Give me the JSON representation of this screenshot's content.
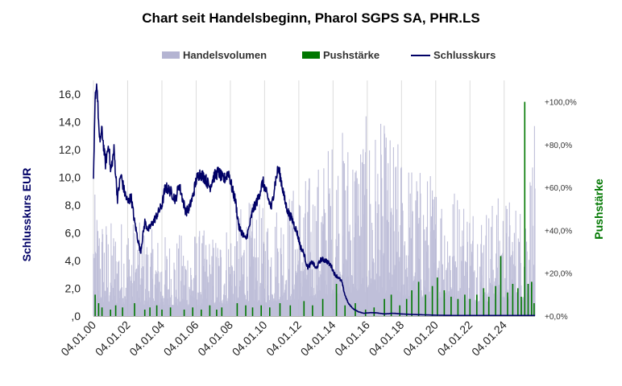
{
  "chart_data": {
    "type": "combo",
    "title": "Chart seit Handelsbeginn, Pharol SGPS SA, PHR.LS",
    "legend_position": "top",
    "legend": [
      {
        "name": "Handelsvolumen",
        "color": "#b4b4d2",
        "kind": "area"
      },
      {
        "name": "Pushstärke",
        "color": "#007700",
        "kind": "bar"
      },
      {
        "name": "Schlusskurs",
        "color": "#000066",
        "kind": "line"
      }
    ],
    "ylabel_left": "Schlusskurs EUR",
    "ylabel_right": "Pushstärke",
    "ylim_left": [
      0,
      17
    ],
    "ylim_right": [
      0,
      110
    ],
    "yticks_left": [
      {
        "value": 0,
        "label": ",0"
      },
      {
        "value": 2,
        "label": "2,0"
      },
      {
        "value": 4,
        "label": "4,0"
      },
      {
        "value": 6,
        "label": "6,0"
      },
      {
        "value": 8,
        "label": "8,0"
      },
      {
        "value": 10,
        "label": "10,0"
      },
      {
        "value": 12,
        "label": "12,0"
      },
      {
        "value": 14,
        "label": "14,0"
      },
      {
        "value": 16,
        "label": "16,0"
      }
    ],
    "yticks_right": [
      {
        "value": 0,
        "label": "+0,0%"
      },
      {
        "value": 20,
        "label": "+20,0%"
      },
      {
        "value": 40,
        "label": "+40,0%"
      },
      {
        "value": 60,
        "label": "+60,0%"
      },
      {
        "value": 80,
        "label": "+80,0%"
      },
      {
        "value": 100,
        "label": "+100,0%"
      }
    ],
    "xlim": [
      2000.0,
      2025.8
    ],
    "xticks": [
      {
        "value": 2000,
        "label": "04.01.00"
      },
      {
        "value": 2002,
        "label": "04.01.02"
      },
      {
        "value": 2004,
        "label": "04.01.04"
      },
      {
        "value": 2006,
        "label": "04.01.06"
      },
      {
        "value": 2008,
        "label": "04.01.08"
      },
      {
        "value": 2010,
        "label": "04.01.10"
      },
      {
        "value": 2012,
        "label": "04.01.12"
      },
      {
        "value": 2014,
        "label": "04.01.14"
      },
      {
        "value": 2016,
        "label": "04.01.16"
      },
      {
        "value": 2018,
        "label": "04.01.18"
      },
      {
        "value": 2020,
        "label": "04.01.20"
      },
      {
        "value": 2022,
        "label": "04.01.22"
      },
      {
        "value": 2024,
        "label": "04.01.24"
      }
    ],
    "schlusskurs": {
      "x": [
        2000.0,
        2000.1,
        2000.2,
        2000.35,
        2000.5,
        2000.7,
        2000.9,
        2001.0,
        2001.2,
        2001.4,
        2001.6,
        2001.8,
        2002.0,
        2002.2,
        2002.4,
        2002.6,
        2002.75,
        2003.0,
        2003.2,
        2003.5,
        2003.8,
        2004.0,
        2004.2,
        2004.5,
        2004.8,
        2005.0,
        2005.2,
        2005.4,
        2005.6,
        2005.8,
        2006.0,
        2006.2,
        2006.5,
        2006.8,
        2007.0,
        2007.3,
        2007.6,
        2007.9,
        2008.1,
        2008.3,
        2008.5,
        2008.7,
        2008.9,
        2009.1,
        2009.3,
        2009.6,
        2009.9,
        2010.2,
        2010.4,
        2010.6,
        2010.8,
        2011.0,
        2011.2,
        2011.4,
        2011.6,
        2011.9,
        2012.1,
        2012.3,
        2012.5,
        2012.8,
        2013.0,
        2013.3,
        2013.6,
        2013.9,
        2014.1,
        2014.3,
        2014.5,
        2014.7,
        2014.9,
        2015.2,
        2015.5,
        2015.8,
        2016.2,
        2016.6,
        2017.0,
        2017.5,
        2018.0,
        2018.5,
        2019.0,
        2019.5,
        2020.0,
        2020.5,
        2021.0,
        2022.0,
        2023.0,
        2024.0,
        2025.0,
        2025.8
      ],
      "y": [
        9.5,
        15.8,
        16.8,
        12.5,
        13.4,
        11.0,
        12.5,
        10.3,
        12.0,
        8.5,
        10.2,
        9.0,
        8.2,
        8.6,
        6.8,
        5.5,
        4.6,
        6.8,
        6.2,
        6.8,
        7.5,
        8.0,
        9.3,
        9.0,
        8.4,
        9.5,
        8.5,
        7.5,
        7.8,
        8.6,
        9.8,
        10.3,
        10.0,
        9.3,
        10.0,
        10.4,
        9.8,
        10.4,
        9.2,
        8.3,
        6.4,
        6.0,
        5.5,
        6.4,
        7.6,
        8.4,
        9.7,
        8.5,
        7.8,
        9.5,
        10.7,
        9.6,
        8.2,
        7.4,
        7.0,
        6.0,
        5.0,
        4.5,
        3.5,
        3.9,
        3.4,
        4.1,
        4.0,
        3.6,
        3.0,
        2.8,
        2.5,
        1.5,
        0.9,
        0.5,
        0.3,
        0.2,
        0.25,
        0.22,
        0.15,
        0.2,
        0.15,
        0.12,
        0.1,
        0.08,
        0.06,
        0.05,
        0.04,
        0.04,
        0.04,
        0.04,
        0.04,
        0.04
      ]
    },
    "handelsvolumen_envelope": {
      "x": [
        2000.0,
        2001.0,
        2002.0,
        2003.0,
        2004.0,
        2005.0,
        2006.0,
        2007.0,
        2008.0,
        2009.0,
        2010.0,
        2011.0,
        2012.0,
        2013.0,
        2014.0,
        2015.0,
        2016.0,
        2017.0,
        2018.0,
        2019.0,
        2020.0,
        2021.0,
        2022.0,
        2023.0,
        2024.0,
        2025.0,
        2025.8
      ],
      "y": [
        9.0,
        7.0,
        7.5,
        6.5,
        6.0,
        6.0,
        6.5,
        6.0,
        7.5,
        8.5,
        8.0,
        9.0,
        10.0,
        11.0,
        13.5,
        14.0,
        14.5,
        14.0,
        12.5,
        11.0,
        10.5,
        10.0,
        9.0,
        8.5,
        9.0,
        8.5,
        14.0
      ]
    },
    "pushstaerke_bars": {
      "x": [
        2000.1,
        2000.3,
        2000.5,
        2001.0,
        2001.3,
        2001.7,
        2002.4,
        2003.0,
        2003.3,
        2003.7,
        2004.0,
        2004.5,
        2005.3,
        2005.8,
        2006.3,
        2006.8,
        2007.2,
        2007.5,
        2008.4,
        2008.9,
        2009.3,
        2009.8,
        2010.3,
        2010.9,
        2011.5,
        2012.3,
        2012.8,
        2013.4,
        2014.2,
        2014.7,
        2015.3,
        2015.9,
        2016.4,
        2017.0,
        2017.4,
        2017.9,
        2018.3,
        2018.6,
        2019.0,
        2019.4,
        2019.8,
        2020.1,
        2020.5,
        2020.9,
        2021.3,
        2021.7,
        2022.0,
        2022.4,
        2022.8,
        2023.1,
        2023.5,
        2023.8,
        2024.2,
        2024.5,
        2024.8,
        2025.0,
        2025.2,
        2025.4,
        2025.6,
        2025.75
      ],
      "y": [
        10,
        6,
        4,
        3,
        5,
        4,
        6,
        3,
        4,
        5,
        3,
        4,
        3,
        4,
        3,
        5,
        3,
        4,
        6,
        5,
        4,
        5,
        4,
        6,
        5,
        7,
        5,
        8,
        15,
        5,
        6,
        3,
        4,
        8,
        10,
        5,
        8,
        12,
        16,
        10,
        14,
        18,
        12,
        9,
        8,
        10,
        8,
        10,
        13,
        9,
        14,
        28,
        11,
        15,
        13,
        9,
        100,
        15,
        16,
        6
      ]
    }
  }
}
